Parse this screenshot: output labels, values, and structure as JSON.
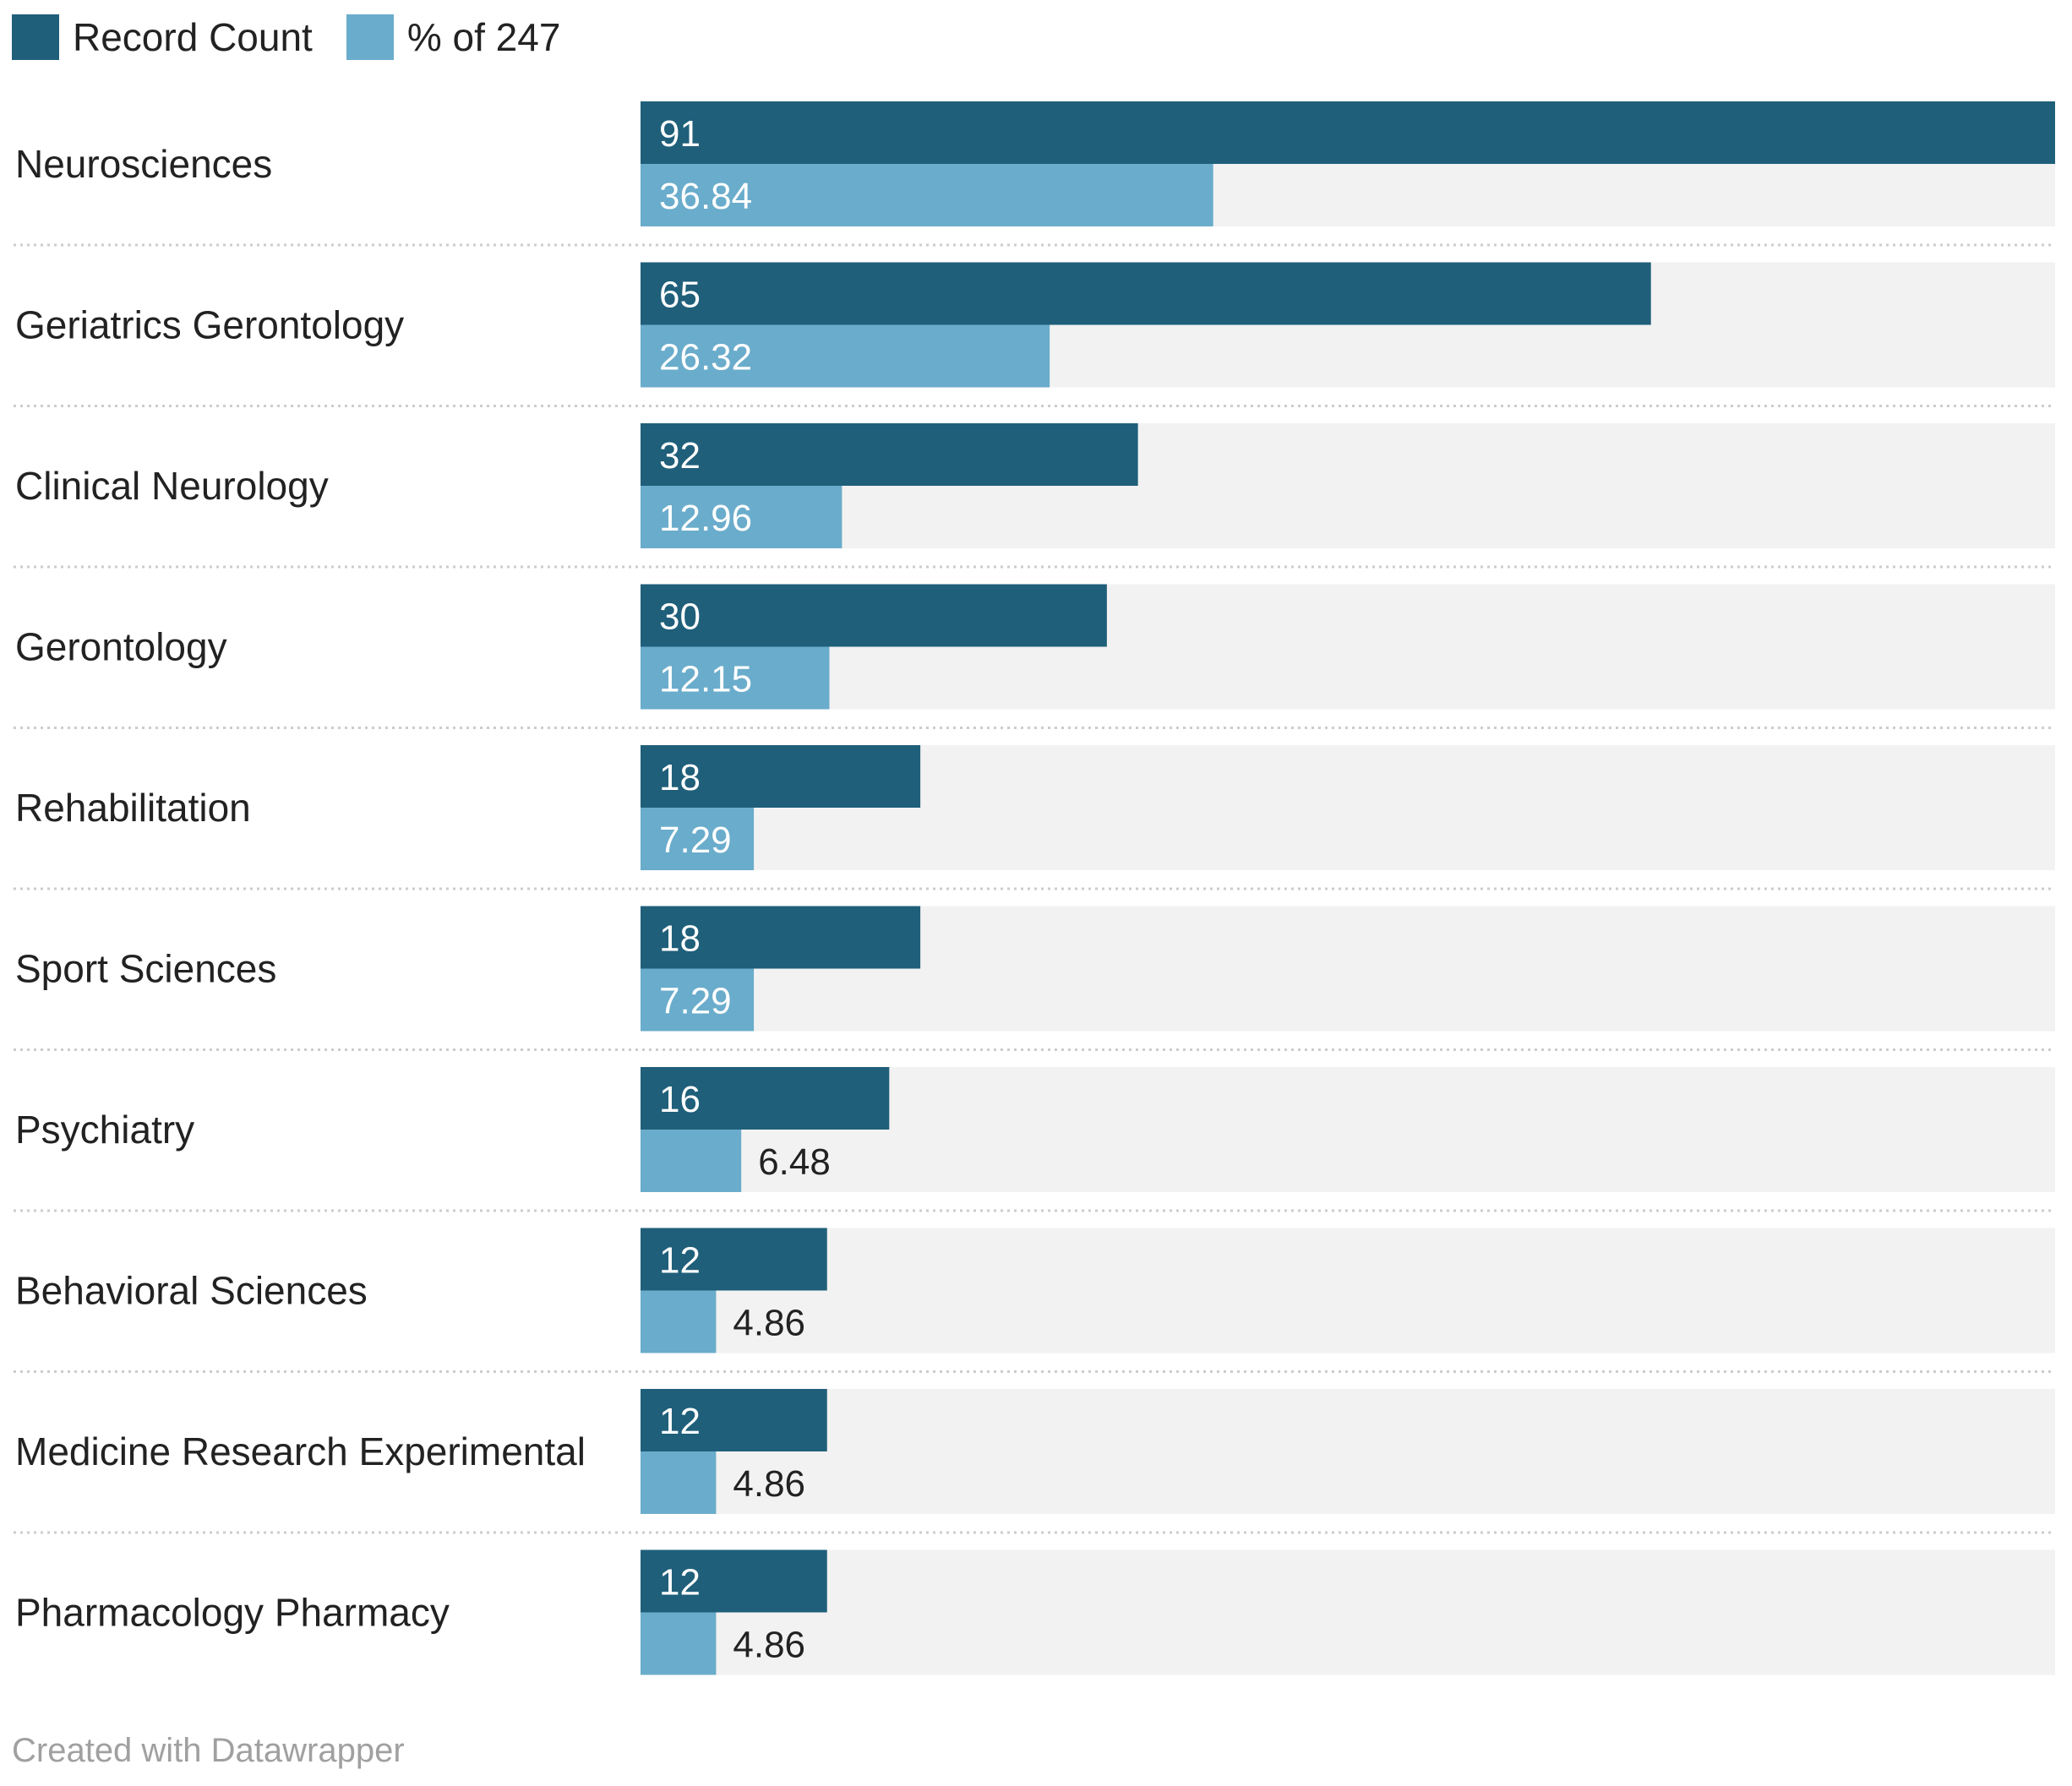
{
  "chart_data": {
    "type": "bar",
    "orientation": "horizontal",
    "categories": [
      "Neurosciences",
      "Geriatrics Gerontology",
      "Clinical Neurology",
      "Gerontology",
      "Rehabilitation",
      "Sport Sciences",
      "Psychiatry",
      "Behavioral Sciences",
      "Medicine Research Experimental",
      "Pharmacology Pharmacy"
    ],
    "series": [
      {
        "name": "Record Count",
        "color": "#1f5f7a",
        "values": [
          91,
          65,
          32,
          30,
          18,
          18,
          16,
          12,
          12,
          12
        ]
      },
      {
        "name": "% of 247",
        "color": "#6aaccb",
        "values": [
          36.84,
          26.32,
          12.96,
          12.15,
          7.29,
          7.29,
          6.48,
          4.86,
          4.86,
          4.86
        ]
      }
    ],
    "xlim": [
      0,
      91
    ],
    "legend_position": "top-left",
    "background_track_color": "#f2f2f2",
    "separator": "dotted"
  },
  "footer": {
    "credit": "Created with Datawrapper"
  }
}
